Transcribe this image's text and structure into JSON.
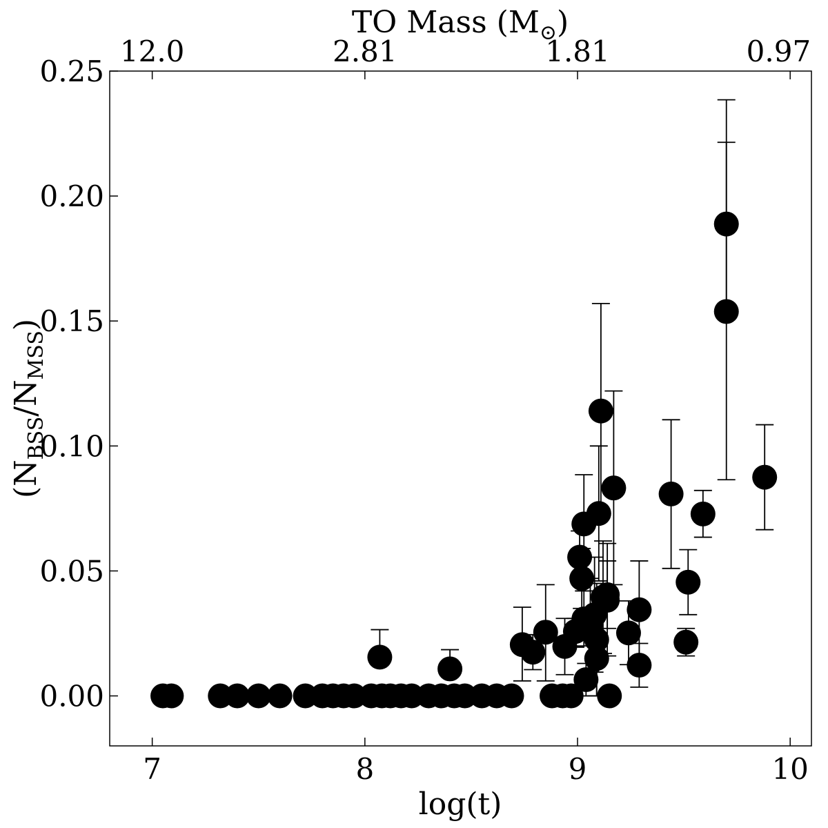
{
  "chart_data": {
    "type": "scatter",
    "title": "",
    "xlabel": "log(t)",
    "ylabel": "(N_BSS/N_MSS)",
    "ylabel_parts": {
      "open": "(N",
      "sub1": "BSS",
      "mid": "/N",
      "sub2": "MSS",
      "close": ")"
    },
    "top_xlabel": "TO Mass (M",
    "top_xlabel_suffix": ")",
    "top_xlabel_symbol": "⊙",
    "xlim": [
      6.8,
      10.1
    ],
    "ylim": [
      -0.02,
      0.25
    ],
    "x_ticks": [
      {
        "value": 7,
        "label": "7"
      },
      {
        "value": 8,
        "label": "8"
      },
      {
        "value": 9,
        "label": "9"
      },
      {
        "value": 10,
        "label": "10"
      }
    ],
    "y_ticks": [
      {
        "value": 0.0,
        "label": "0.00"
      },
      {
        "value": 0.05,
        "label": "0.05"
      },
      {
        "value": 0.1,
        "label": "0.10"
      },
      {
        "value": 0.15,
        "label": "0.15"
      },
      {
        "value": 0.2,
        "label": "0.20"
      },
      {
        "value": 0.25,
        "label": "0.25"
      }
    ],
    "top_ticks": [
      {
        "value": 7.0,
        "label": "12.0"
      },
      {
        "value": 8.0,
        "label": "2.81"
      },
      {
        "value": 9.0,
        "label": "1.81"
      },
      {
        "value": 10.0,
        "label": "0.97"
      }
    ],
    "grid": false,
    "legend": false,
    "marker_color": "#000000",
    "points": [
      {
        "x": 7.05,
        "y": 0.0
      },
      {
        "x": 7.09,
        "y": 0.0
      },
      {
        "x": 7.32,
        "y": 0.0
      },
      {
        "x": 7.4,
        "y": 0.0
      },
      {
        "x": 7.5,
        "y": 0.0
      },
      {
        "x": 7.6,
        "y": 0.0
      },
      {
        "x": 7.72,
        "y": 0.0
      },
      {
        "x": 7.8,
        "y": 0.0
      },
      {
        "x": 7.85,
        "y": 0.0
      },
      {
        "x": 7.9,
        "y": 0.0
      },
      {
        "x": 7.95,
        "y": 0.0
      },
      {
        "x": 8.03,
        "y": 0.0
      },
      {
        "x": 8.08,
        "y": 0.0
      },
      {
        "x": 8.12,
        "y": 0.0
      },
      {
        "x": 8.17,
        "y": 0.0
      },
      {
        "x": 8.22,
        "y": 0.0
      },
      {
        "x": 8.3,
        "y": 0.0
      },
      {
        "x": 8.36,
        "y": 0.0
      },
      {
        "x": 8.42,
        "y": 0.0
      },
      {
        "x": 8.47,
        "y": 0.0
      },
      {
        "x": 8.55,
        "y": 0.0
      },
      {
        "x": 8.62,
        "y": 0.0
      },
      {
        "x": 8.69,
        "y": 0.0
      },
      {
        "x": 8.07,
        "y": 0.0155,
        "yerr_low": 0.0155,
        "yerr_high": 0.0265
      },
      {
        "x": 8.4,
        "y": 0.0108,
        "yerr_low": 0.0108,
        "yerr_high": 0.0185
      },
      {
        "x": 8.74,
        "y": 0.0205,
        "yerr_low": 0.006,
        "yerr_high": 0.0355
      },
      {
        "x": 8.79,
        "y": 0.0175,
        "yerr_low": 0.0105,
        "yerr_high": 0.0245
      },
      {
        "x": 8.85,
        "y": 0.0255,
        "yerr_low": 0.006,
        "yerr_high": 0.0445
      },
      {
        "x": 8.88,
        "y": 0.0,
        "yerr_low": 0.0,
        "yerr_high": 0.0
      },
      {
        "x": 8.93,
        "y": 0.0,
        "yerr_low": 0.0,
        "yerr_high": 0.0
      },
      {
        "x": 8.97,
        "y": 0.0,
        "yerr_low": 0.0,
        "yerr_high": 0.0
      },
      {
        "x": 8.94,
        "y": 0.0198,
        "yerr_low": 0.0085,
        "yerr_high": 0.031
      },
      {
        "x": 8.99,
        "y": 0.0258,
        "yerr_low": 0.0195,
        "yerr_high": 0.031
      },
      {
        "x": 9.01,
        "y": 0.0555,
        "yerr_low": 0.045,
        "yerr_high": 0.066
      },
      {
        "x": 9.02,
        "y": 0.047,
        "yerr_low": 0.035,
        "yerr_high": 0.059
      },
      {
        "x": 9.03,
        "y": 0.0688,
        "yerr_low": 0.049,
        "yerr_high": 0.0885
      },
      {
        "x": 9.03,
        "y": 0.0308,
        "yerr_low": 0.02,
        "yerr_high": 0.042
      },
      {
        "x": 9.04,
        "y": 0.0065,
        "yerr_low": 0.0,
        "yerr_high": 0.013
      },
      {
        "x": 9.06,
        "y": 0.0285,
        "yerr_low": 0.01,
        "yerr_high": 0.047
      },
      {
        "x": 9.08,
        "y": 0.0325,
        "yerr_low": 0.0095,
        "yerr_high": 0.0555
      },
      {
        "x": 9.09,
        "y": 0.015,
        "yerr_low": 0.0,
        "yerr_high": 0.0305
      },
      {
        "x": 9.09,
        "y": 0.0225,
        "yerr_low": 0.0,
        "yerr_high": 0.045
      },
      {
        "x": 9.1,
        "y": 0.073,
        "yerr_low": 0.046,
        "yerr_high": 0.1
      },
      {
        "x": 9.11,
        "y": 0.114,
        "yerr_low": 0.071,
        "yerr_high": 0.157
      },
      {
        "x": 9.12,
        "y": 0.0395,
        "yerr_low": 0.017,
        "yerr_high": 0.062
      },
      {
        "x": 9.14,
        "y": 0.0405,
        "yerr_low": 0.027,
        "yerr_high": 0.054
      },
      {
        "x": 9.14,
        "y": 0.0383,
        "yerr_low": 0.016,
        "yerr_high": 0.061
      },
      {
        "x": 9.15,
        "y": 0.0,
        "yerr_low": 0.0,
        "yerr_high": 0.0
      },
      {
        "x": 9.17,
        "y": 0.0832,
        "yerr_low": 0.0445,
        "yerr_high": 0.122
      },
      {
        "x": 9.24,
        "y": 0.0252,
        "yerr_low": 0.0125,
        "yerr_high": 0.038
      },
      {
        "x": 9.29,
        "y": 0.0345,
        "yerr_low": 0.015,
        "yerr_high": 0.054
      },
      {
        "x": 9.29,
        "y": 0.0123,
        "yerr_low": 0.0035,
        "yerr_high": 0.021
      },
      {
        "x": 9.44,
        "y": 0.0808,
        "yerr_low": 0.051,
        "yerr_high": 0.1105
      },
      {
        "x": 9.51,
        "y": 0.0215,
        "yerr_low": 0.016,
        "yerr_high": 0.027
      },
      {
        "x": 9.52,
        "y": 0.0455,
        "yerr_low": 0.0325,
        "yerr_high": 0.0585
      },
      {
        "x": 9.59,
        "y": 0.0728,
        "yerr_low": 0.0635,
        "yerr_high": 0.0822
      },
      {
        "x": 9.7,
        "y": 0.1888,
        "yerr_low": 0.1565,
        "yerr_high": 0.2215
      },
      {
        "x": 9.7,
        "y": 0.1538,
        "yerr_low": 0.0865,
        "yerr_high": 0.2385
      },
      {
        "x": 9.88,
        "y": 0.0875,
        "yerr_low": 0.0665,
        "yerr_high": 0.1085
      }
    ]
  }
}
